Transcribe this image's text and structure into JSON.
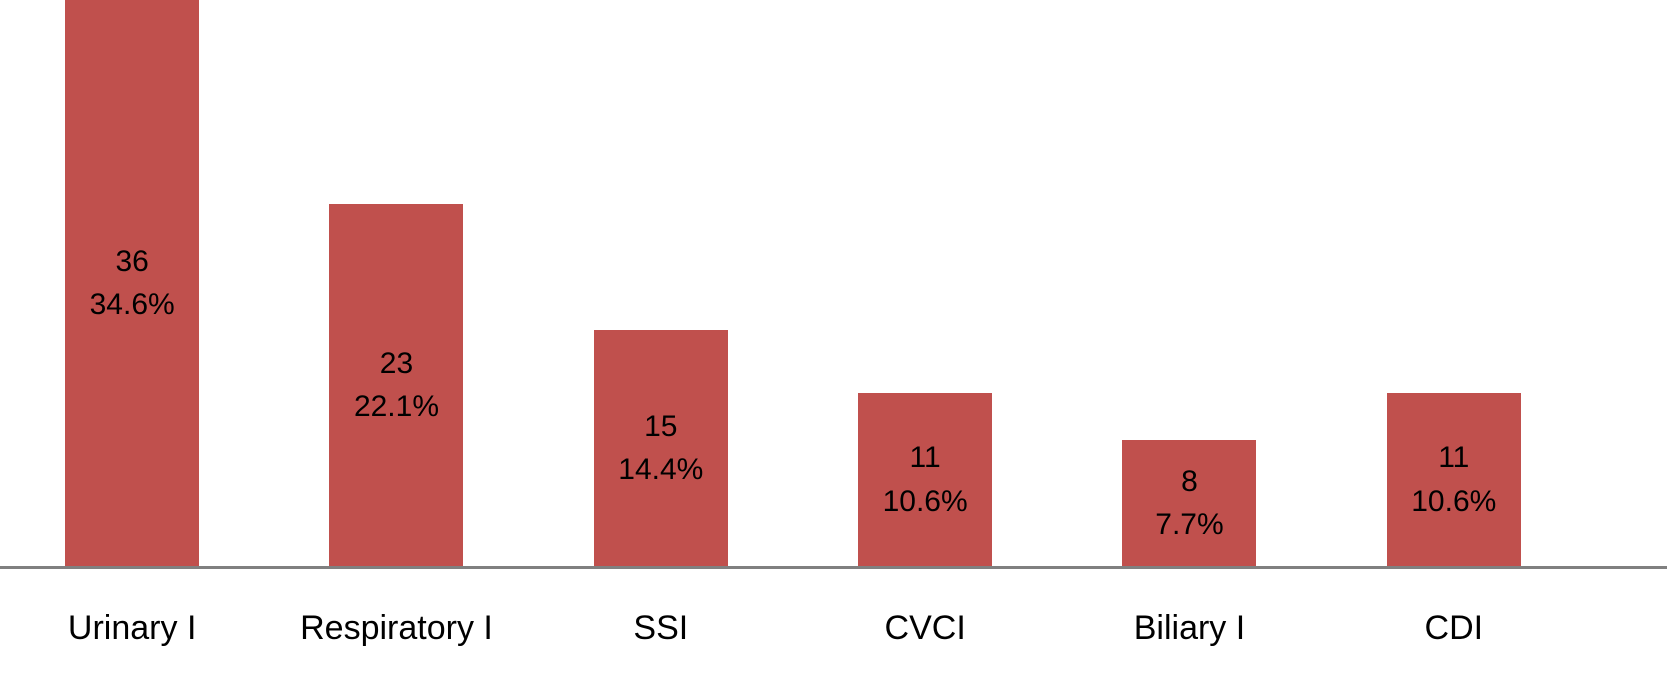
{
  "chart_data": {
    "type": "bar",
    "title": "",
    "xlabel": "",
    "ylabel": "",
    "categories": [
      "Urinary I",
      "Respiratory I",
      "SSI",
      "CVCI",
      "Biliary I",
      "CDI"
    ],
    "values": [
      36,
      23,
      15,
      11,
      8,
      11
    ],
    "percent_labels": [
      "34.6%",
      "22.1%",
      "14.4%",
      "10.6%",
      "7.7%",
      "10.6%"
    ],
    "bar_value_labels": [
      [
        "36",
        "34.6%"
      ],
      [
        "23",
        "22.1%"
      ],
      [
        "15",
        "14.4%"
      ],
      [
        "11",
        "10.6%"
      ],
      [
        "8",
        "7.7%"
      ],
      [
        "11",
        "10.6%"
      ]
    ],
    "ylim": [
      0,
      36
    ],
    "grid": false,
    "legend": false,
    "bar_color": "#c0504d",
    "axis_line_color": "#808080",
    "label_color": "#000000"
  }
}
